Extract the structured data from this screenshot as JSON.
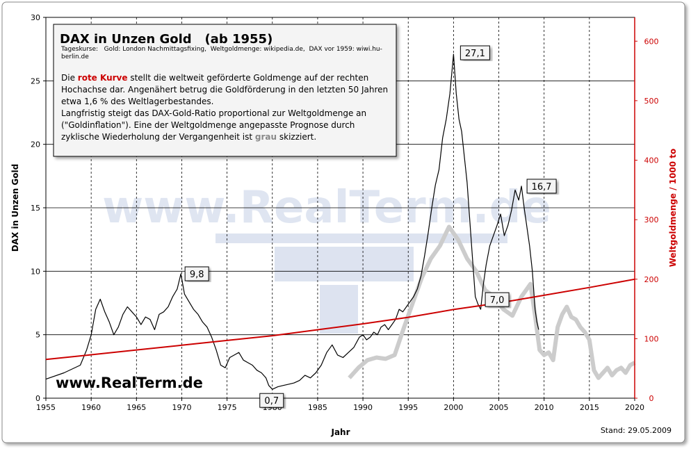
{
  "chart_data": {
    "type": "line",
    "title": "DAX in Unzen Gold   (ab 1955)",
    "subtitle": "Tageskurse:   Gold: London Nachmittagsfixing,  Weltgoldmenge: wikipedia.de,  DAX vor 1959: wiwi.hu-berlin.de",
    "description": [
      {
        "text": "Die ",
        "color": "#000000"
      },
      {
        "text": "rote Kurve",
        "color": "#cc0000",
        "bold": true
      },
      {
        "text": " stellt die weltweit geförderte Goldmenge auf der rechten Hochachse dar. Angenähert betrug die Goldförderung in den letzten 50 Jahren etwa 1,6 %  des Weltlagerbestandes.",
        "color": "#000000"
      }
    ],
    "description2": [
      {
        "text": "Langfristig steigt das DAX-Gold-Ratio proportional zur Weltgoldmenge an (\"Goldinflation\"). Eine der Weltgoldmenge angepasste Prognose durch zyklische Wiederholung der Vergangenheit ist ",
        "color": "#000000"
      },
      {
        "text": "grau",
        "color": "#888888",
        "bold": true
      },
      {
        "text": " skizziert.",
        "color": "#000000"
      }
    ],
    "xlabel": "Jahr",
    "ylabel": "DAX in Unzen Gold",
    "y2label": "Weltgoldmenge / 1000 to",
    "xlim": [
      1955,
      2020
    ],
    "ylim": [
      0,
      30
    ],
    "y2lim": [
      0,
      640
    ],
    "xticks": [
      1955,
      1960,
      1965,
      1970,
      1975,
      1980,
      1985,
      1990,
      1995,
      2000,
      2005,
      2010,
      2015,
      2020
    ],
    "yticks": [
      0,
      5,
      10,
      15,
      20,
      25,
      30
    ],
    "y2ticks": [
      0,
      100,
      200,
      300,
      400,
      500,
      600
    ],
    "grid": true,
    "watermark": "www.RealTerm.de",
    "website": "www.RealTerm.de",
    "stand": "Stand:  29.05.2009",
    "annotations": [
      {
        "label": "27,1",
        "x": 2000.0,
        "y": 27.1
      },
      {
        "label": "16,7",
        "x": 2007.5,
        "y": 16.7
      },
      {
        "label": "9,8",
        "x": 1969.9,
        "y": 9.8
      },
      {
        "label": "7,0",
        "x": 2003.2,
        "y": 7.0
      },
      {
        "label": "0,7",
        "x": 1980.0,
        "y": 0.7
      }
    ],
    "series": [
      {
        "color": "#000000",
        "axis": "left",
        "x": [
          1955.0,
          1957.0,
          1958.8,
          1959.5,
          1960.0,
          1960.5,
          1961.0,
          1961.5,
          1962.0,
          1962.5,
          1963.0,
          1963.5,
          1964.0,
          1964.5,
          1965.0,
          1965.5,
          1966.0,
          1966.5,
          1967.0,
          1967.5,
          1968.0,
          1968.5,
          1969.0,
          1969.5,
          1969.9,
          1970.3,
          1970.8,
          1971.3,
          1971.8,
          1972.3,
          1972.8,
          1973.3,
          1973.8,
          1974.3,
          1974.8,
          1975.3,
          1975.8,
          1976.3,
          1976.8,
          1977.3,
          1977.8,
          1978.3,
          1978.8,
          1979.3,
          1979.6,
          1980.0,
          1980.6,
          1981.2,
          1981.8,
          1982.4,
          1983.0,
          1983.6,
          1984.2,
          1984.8,
          1985.4,
          1986.0,
          1986.6,
          1987.2,
          1987.8,
          1988.4,
          1989.0,
          1989.6,
          1990.0,
          1990.4,
          1990.8,
          1991.2,
          1991.6,
          1992.0,
          1992.4,
          1992.8,
          1993.2,
          1993.6,
          1994.0,
          1994.4,
          1994.8,
          1995.2,
          1995.6,
          1996.0,
          1996.4,
          1996.8,
          1997.2,
          1997.6,
          1998.0,
          1998.4,
          1998.8,
          1999.2,
          1999.6,
          2000.0,
          2000.3,
          2000.6,
          2000.9,
          2001.2,
          2001.5,
          2001.8,
          2002.1,
          2002.4,
          2002.7,
          2003.0,
          2003.3,
          2003.6,
          2004.0,
          2004.4,
          2004.8,
          2005.2,
          2005.6,
          2006.0,
          2006.4,
          2006.8,
          2007.2,
          2007.5,
          2007.8,
          2008.1,
          2008.4,
          2008.7,
          2009.0,
          2009.2,
          2009.4
        ],
        "y": [
          1.5,
          2.0,
          2.6,
          3.8,
          5.0,
          7.0,
          7.8,
          6.8,
          6.0,
          5.0,
          5.6,
          6.6,
          7.2,
          6.8,
          6.4,
          5.8,
          6.4,
          6.2,
          5.4,
          6.6,
          6.8,
          7.2,
          8.0,
          8.6,
          9.8,
          8.2,
          7.6,
          7.0,
          6.6,
          6.0,
          5.6,
          4.8,
          3.8,
          2.6,
          2.4,
          3.2,
          3.4,
          3.6,
          3.0,
          2.8,
          2.6,
          2.2,
          2.0,
          1.6,
          1.0,
          0.7,
          0.9,
          1.0,
          1.1,
          1.2,
          1.4,
          1.8,
          1.6,
          2.0,
          2.6,
          3.6,
          4.2,
          3.4,
          3.2,
          3.6,
          4.0,
          4.8,
          5.0,
          4.6,
          4.8,
          5.2,
          5.0,
          5.6,
          5.8,
          5.4,
          5.8,
          6.2,
          7.0,
          6.8,
          7.2,
          7.6,
          8.0,
          8.6,
          9.6,
          11.2,
          13.0,
          15.0,
          16.8,
          18.0,
          20.5,
          22.0,
          24.0,
          27.1,
          24.0,
          22.0,
          21.0,
          19.0,
          17.0,
          14.0,
          11.0,
          8.0,
          7.4,
          7.0,
          9.0,
          10.5,
          12.0,
          12.8,
          13.6,
          14.5,
          12.8,
          13.6,
          14.8,
          16.4,
          15.6,
          16.7,
          15.0,
          13.5,
          12.0,
          10.0,
          7.0,
          6.0,
          5.4
        ]
      },
      {
        "color": "#cccccc",
        "axis": "left",
        "x": [
          1988.5,
          1989.5,
          1990.5,
          1991.5,
          1992.5,
          1993.5,
          1994.5,
          1995.5,
          1996.5,
          1997.5,
          1998.5,
          1999.5,
          2000.5,
          2001.5,
          2002.5,
          2003.5,
          2004.5,
          2005.5,
          2006.5,
          2007.5,
          2008.5,
          2009.0,
          2009.5,
          2010.0,
          2010.5,
          2011.0,
          2011.5,
          2012.0,
          2012.5,
          2013.0,
          2013.5,
          2014.0,
          2014.5,
          2015.0,
          2015.5,
          2016.0,
          2016.5,
          2017.0,
          2017.5,
          2018.0,
          2018.5,
          2019.0,
          2019.5,
          2020.0
        ],
        "y": [
          1.6,
          2.4,
          3.0,
          3.2,
          3.1,
          3.4,
          5.5,
          7.5,
          9.5,
          11.0,
          12.0,
          13.5,
          12.5,
          11.0,
          10.0,
          8.5,
          8.0,
          7.0,
          6.5,
          8.0,
          9.0,
          6.5,
          3.8,
          3.4,
          3.6,
          3.0,
          5.6,
          6.6,
          7.2,
          6.4,
          6.2,
          5.6,
          5.2,
          4.6,
          2.2,
          1.6,
          2.0,
          2.4,
          1.8,
          2.2,
          2.4,
          2.0,
          2.6,
          2.8
        ]
      },
      {
        "color": "#cc0000",
        "axis": "right",
        "x": [
          1955,
          1960,
          1965,
          1970,
          1975,
          1980,
          1985,
          1990,
          1995,
          2000,
          2005,
          2010,
          2015,
          2020
        ],
        "y": [
          65,
          73,
          81,
          89,
          97,
          105,
          115,
          125,
          136,
          149,
          160,
          173,
          186,
          200
        ]
      }
    ]
  }
}
